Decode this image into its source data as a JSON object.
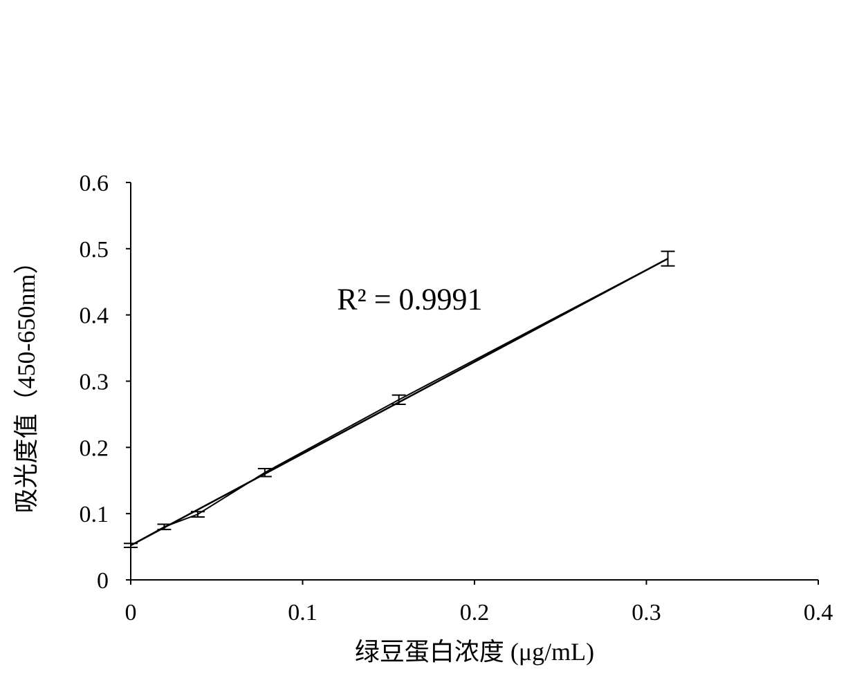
{
  "chart_data": {
    "type": "line",
    "title": "",
    "xlabel": "绿豆蛋白浓度 (μg/mL)",
    "ylabel": "吸光度值（450-650nm）",
    "xlim": [
      0,
      0.4
    ],
    "ylim": [
      0,
      0.6
    ],
    "xticks": [
      "0",
      "0.1",
      "0.2",
      "0.3",
      "0.4"
    ],
    "yticks": [
      "0",
      "0.1",
      "0.2",
      "0.3",
      "0.4",
      "0.5",
      "0.6"
    ],
    "grid": false,
    "legend": "none",
    "series": [
      {
        "x": [
          0,
          0.0195,
          0.039,
          0.078,
          0.156,
          0.3125
        ],
        "y": [
          0.052,
          0.08,
          0.099,
          0.162,
          0.272,
          0.485
        ],
        "error": [
          0.003,
          0.004,
          0.004,
          0.006,
          0.007,
          0.011
        ]
      }
    ],
    "trendline": {
      "type": "linear",
      "from": [
        0,
        0.052
      ],
      "to": [
        0.3125,
        0.485
      ]
    },
    "annotations": [
      {
        "text": "R² = 0.9991",
        "x": 0.12,
        "y": 0.425
      }
    ],
    "colors": {
      "line": "#000000",
      "axis": "#000000"
    }
  }
}
